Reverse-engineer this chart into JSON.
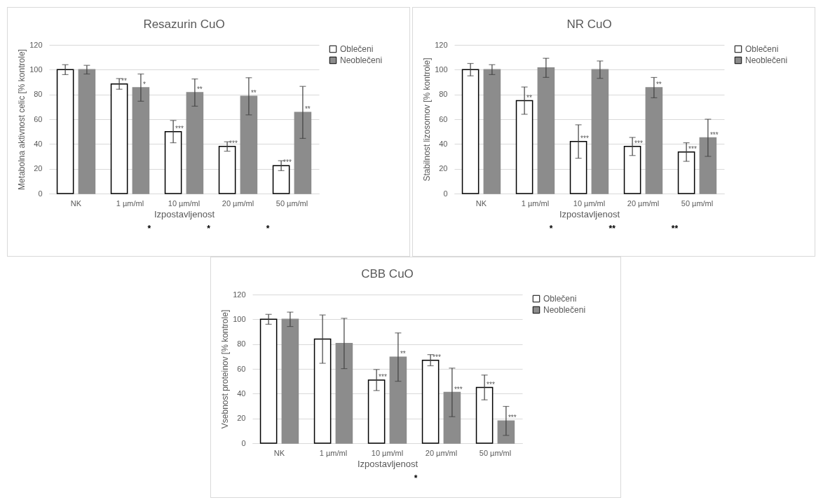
{
  "chart_data": [
    {
      "type": "bar",
      "title": "Resazurin CuO",
      "xlabel": "Izpostavljenost",
      "ylabel": "Metabolna aktivnost celic [% kontrole]",
      "categories": [
        "NK",
        "1 µm/ml",
        "10 µm/ml",
        "20 µm/ml",
        "50 µm/ml"
      ],
      "ylim": [
        0,
        120
      ],
      "yticks": [
        0,
        20,
        40,
        60,
        80,
        100,
        120
      ],
      "grid": "y",
      "legend": "right",
      "series": [
        {
          "name": "Oblečeni",
          "color": "#ffffff",
          "values": [
            100,
            88.5,
            50,
            38,
            22.5
          ],
          "errors": [
            4,
            4.3,
            9,
            3.8,
            4
          ],
          "value_labels": [
            null,
            "**",
            "***",
            "***",
            "***"
          ]
        },
        {
          "name": "Neoblečeni",
          "color": "#8c8c8c",
          "values": [
            100,
            85.5,
            81.5,
            78.5,
            65.5
          ],
          "errors": [
            3.5,
            11,
            11,
            15,
            21
          ],
          "value_labels": [
            null,
            "*",
            "**",
            "**",
            "**"
          ]
        }
      ],
      "annotations": [
        "*",
        "*",
        "*"
      ]
    },
    {
      "type": "bar",
      "title": "NR CuO",
      "xlabel": "Izpostavljenost",
      "ylabel": "Stabilnost lizosomov [% kontrole]",
      "categories": [
        "NK",
        "1 µm/ml",
        "10 µm/ml",
        "20 µm/ml",
        "50 µm/ml"
      ],
      "ylim": [
        0,
        120
      ],
      "yticks": [
        0,
        20,
        40,
        60,
        80,
        100,
        120
      ],
      "grid": "y",
      "legend": "right",
      "series": [
        {
          "name": "Oblečeni",
          "color": "#ffffff",
          "values": [
            100,
            75,
            42,
            38,
            33.5
          ],
          "errors": [
            5,
            11,
            13.5,
            7.3,
            7.5
          ],
          "value_labels": [
            null,
            "**",
            "***",
            "***",
            "***"
          ]
        },
        {
          "name": "Neoblečeni",
          "color": "#8c8c8c",
          "values": [
            100,
            101.5,
            100,
            85.5,
            45
          ],
          "errors": [
            4,
            7.7,
            7,
            8.2,
            15
          ],
          "value_labels": [
            null,
            null,
            null,
            "**",
            "***"
          ]
        }
      ],
      "annotations": [
        "*",
        "**",
        "**"
      ]
    },
    {
      "type": "bar",
      "title": "CBB CuO",
      "xlabel": "Izpostavljenost",
      "ylabel": "Vsebnost proteinov [% kontrole]",
      "categories": [
        "NK",
        "1 µm/ml",
        "10 µm/ml",
        "20 µm/ml",
        "50 µm/ml"
      ],
      "ylim": [
        0,
        120
      ],
      "yticks": [
        0,
        20,
        40,
        60,
        80,
        100,
        120
      ],
      "grid": "y",
      "legend": "right",
      "series": [
        {
          "name": "Oblečeni",
          "color": "#ffffff",
          "values": [
            100,
            84,
            51,
            67,
            45
          ],
          "errors": [
            4,
            19.5,
            8.5,
            4.5,
            10
          ],
          "value_labels": [
            null,
            null,
            "***",
            "***",
            "***"
          ]
        },
        {
          "name": "Neoblečeni",
          "color": "#8c8c8c",
          "values": [
            100,
            80.5,
            69.5,
            41,
            18
          ],
          "errors": [
            5.8,
            20.3,
            19.5,
            19.6,
            11.7
          ],
          "value_labels": [
            null,
            null,
            "**",
            "***",
            "***"
          ]
        }
      ],
      "annotations": [
        "*"
      ]
    }
  ]
}
